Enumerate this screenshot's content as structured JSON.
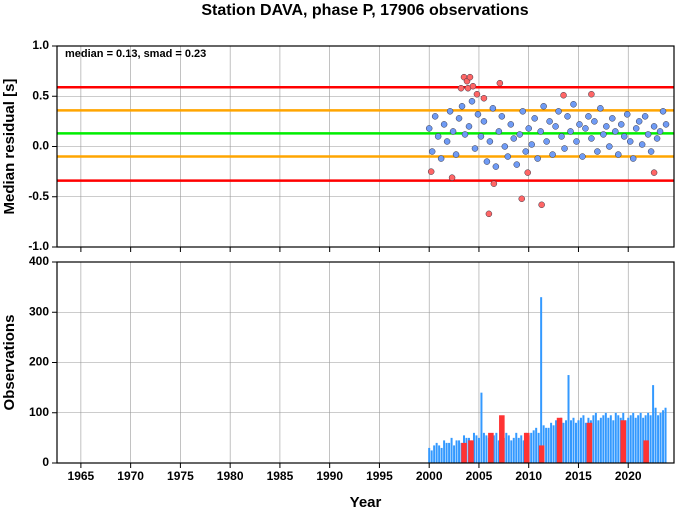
{
  "chart_data": [
    {
      "type": "scatter",
      "title": "Station DAVA, phase P, 17906 observations",
      "annotation": "median = 0.13, smad = 0.23",
      "ylabel": "Median residual [s]",
      "xlim": [
        1962.6,
        2024.6
      ],
      "ylim": [
        -1.0,
        1.0
      ],
      "xticks": [
        1965,
        1970,
        1975,
        1980,
        1985,
        1990,
        1995,
        2000,
        2005,
        2010,
        2015,
        2020
      ],
      "yticks": [
        {
          "value": -1.0,
          "label": "-1.0"
        },
        -0.5,
        {
          "value": 0.0,
          "label": "0.0"
        },
        0.5,
        {
          "value": 1.0,
          "label": "1.0"
        }
      ],
      "grid": true,
      "hlines": [
        {
          "value": 0.59,
          "color": "#ff0000"
        },
        {
          "value": 0.36,
          "color": "#ffa500"
        },
        {
          "value": 0.13,
          "color": "#00ee00"
        },
        {
          "value": -0.1,
          "color": "#ffa500"
        },
        {
          "value": -0.34,
          "color": "#ff0000"
        }
      ],
      "series": [
        {
          "color": "#6f9bf5",
          "x": [
            2000.0,
            2000.3,
            2000.6,
            2000.9,
            2001.2,
            2001.5,
            2001.8,
            2002.1,
            2002.4,
            2002.7,
            2003.0,
            2003.3,
            2003.6,
            2004.0,
            2004.3,
            2004.6,
            2004.9,
            2005.2,
            2005.5,
            2005.8,
            2006.1,
            2006.4,
            2006.7,
            2007.0,
            2007.3,
            2007.6,
            2007.9,
            2008.2,
            2008.5,
            2008.8,
            2009.1,
            2009.4,
            2009.7,
            2010.0,
            2010.3,
            2010.6,
            2010.9,
            2011.2,
            2011.5,
            2011.8,
            2012.1,
            2012.4,
            2012.7,
            2013.0,
            2013.3,
            2013.6,
            2013.9,
            2014.2,
            2014.5,
            2014.8,
            2015.1,
            2015.4,
            2015.7,
            2016.0,
            2016.3,
            2016.6,
            2016.9,
            2017.2,
            2017.5,
            2017.8,
            2018.1,
            2018.4,
            2018.7,
            2019.0,
            2019.3,
            2019.6,
            2019.9,
            2020.2,
            2020.5,
            2020.8,
            2021.1,
            2021.4,
            2021.7,
            2022.0,
            2022.3,
            2022.6,
            2022.9,
            2023.2,
            2023.5,
            2023.8
          ],
          "values": [
            0.18,
            -0.05,
            0.3,
            0.1,
            -0.12,
            0.22,
            0.05,
            0.35,
            0.15,
            -0.08,
            0.28,
            0.4,
            0.12,
            0.2,
            0.45,
            -0.02,
            0.32,
            0.1,
            0.25,
            -0.15,
            0.05,
            0.38,
            -0.2,
            0.15,
            0.3,
            0.0,
            -0.1,
            0.22,
            0.08,
            -0.18,
            0.12,
            0.35,
            -0.05,
            0.18,
            0.02,
            0.28,
            -0.12,
            0.15,
            0.4,
            0.05,
            0.25,
            -0.08,
            0.2,
            0.35,
            0.1,
            -0.02,
            0.3,
            0.15,
            0.42,
            0.05,
            0.22,
            -0.1,
            0.18,
            0.3,
            0.08,
            0.25,
            -0.05,
            0.38,
            0.12,
            0.2,
            0.0,
            0.28,
            0.15,
            -0.08,
            0.22,
            0.1,
            0.32,
            0.05,
            -0.12,
            0.18,
            0.25,
            0.02,
            0.3,
            0.12,
            -0.05,
            0.2,
            0.08,
            0.15,
            0.35,
            0.22
          ]
        },
        {
          "color": "#ff6666",
          "x": [
            2000.2,
            2002.3,
            2003.2,
            2003.5,
            2003.8,
            2003.9,
            2004.1,
            2004.4,
            2004.8,
            2005.5,
            2006.0,
            2006.5,
            2007.1,
            2009.3,
            2009.9,
            2011.3,
            2013.5,
            2016.3,
            2022.6
          ],
          "values": [
            -0.25,
            -0.31,
            0.58,
            0.69,
            0.65,
            0.58,
            0.69,
            0.6,
            0.52,
            0.48,
            -0.67,
            -0.37,
            0.63,
            -0.52,
            -0.26,
            -0.58,
            0.51,
            0.52,
            -0.26
          ]
        }
      ]
    },
    {
      "type": "bar",
      "ylabel": "Observations",
      "xlabel": "Year",
      "xlim": [
        1962.6,
        2024.6
      ],
      "ylim": [
        0,
        400
      ],
      "xticks": [
        1965,
        1970,
        1975,
        1980,
        1985,
        1990,
        1995,
        2000,
        2005,
        2010,
        2015,
        2020
      ],
      "yticks": [
        0,
        100,
        200,
        300,
        400
      ],
      "grid": true,
      "series": [
        {
          "color": "#3399ff",
          "x": [
            2000.0,
            2000.25,
            2000.5,
            2000.75,
            2001.0,
            2001.25,
            2001.5,
            2001.75,
            2002.0,
            2002.25,
            2002.5,
            2002.75,
            2003.0,
            2003.25,
            2003.5,
            2003.75,
            2004.0,
            2004.25,
            2004.5,
            2004.75,
            2005.0,
            2005.25,
            2005.5,
            2005.75,
            2006.0,
            2006.25,
            2006.5,
            2006.75,
            2007.0,
            2007.25,
            2007.5,
            2007.75,
            2008.0,
            2008.25,
            2008.5,
            2008.75,
            2009.0,
            2009.25,
            2009.5,
            2009.75,
            2010.0,
            2010.25,
            2010.5,
            2010.75,
            2011.0,
            2011.25,
            2011.5,
            2011.75,
            2012.0,
            2012.25,
            2012.5,
            2012.75,
            2013.0,
            2013.25,
            2013.5,
            2013.75,
            2014.0,
            2014.25,
            2014.5,
            2014.75,
            2015.0,
            2015.25,
            2015.5,
            2015.75,
            2016.0,
            2016.25,
            2016.5,
            2016.75,
            2017.0,
            2017.25,
            2017.5,
            2017.75,
            2018.0,
            2018.25,
            2018.5,
            2018.75,
            2019.0,
            2019.25,
            2019.5,
            2019.75,
            2020.0,
            2020.25,
            2020.5,
            2020.75,
            2021.0,
            2021.25,
            2021.5,
            2021.75,
            2022.0,
            2022.25,
            2022.5,
            2022.75,
            2023.0,
            2023.25,
            2023.5,
            2023.75
          ],
          "values": [
            30,
            25,
            35,
            40,
            35,
            30,
            45,
            40,
            40,
            50,
            35,
            45,
            45,
            40,
            55,
            50,
            50,
            45,
            60,
            55,
            50,
            140,
            60,
            55,
            50,
            45,
            55,
            60,
            45,
            55,
            50,
            60,
            55,
            45,
            50,
            60,
            50,
            55,
            45,
            60,
            55,
            60,
            65,
            70,
            60,
            330,
            75,
            70,
            70,
            80,
            75,
            85,
            75,
            90,
            80,
            85,
            175,
            85,
            90,
            80,
            85,
            90,
            95,
            80,
            90,
            85,
            95,
            100,
            85,
            90,
            95,
            100,
            90,
            95,
            85,
            100,
            95,
            90,
            100,
            85,
            90,
            95,
            100,
            90,
            95,
            100,
            90,
            95,
            100,
            95,
            155,
            110,
            95,
            100,
            105,
            110
          ]
        },
        {
          "color": "#ff3333",
          "x": [
            2003.5,
            2004.2,
            2006.2,
            2007.3,
            2009.8,
            2011.3,
            2013.1,
            2016.1,
            2019.5,
            2021.8
          ],
          "values": [
            40,
            45,
            60,
            95,
            60,
            35,
            90,
            80,
            85,
            45
          ]
        }
      ]
    }
  ]
}
